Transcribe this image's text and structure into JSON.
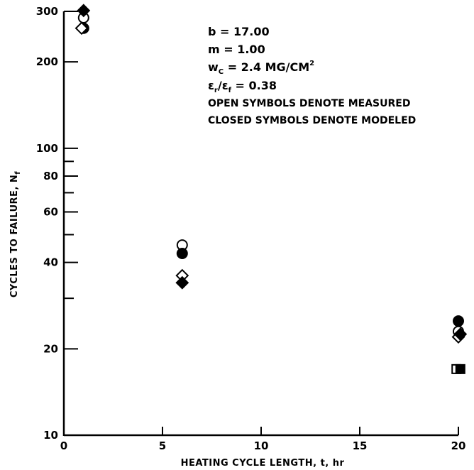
{
  "chart_data": {
    "type": "scatter",
    "xlabel": "HEATING CYCLE LENGTH, t, hr",
    "ylabel": "CYCLES TO FAILURE, N",
    "ylabel_sub": "f",
    "xlim": [
      0,
      20
    ],
    "ylim": [
      10,
      300
    ],
    "yscale": "log",
    "grid": false,
    "x_ticks": [
      0,
      5,
      10,
      15,
      20
    ],
    "x_tick_labels": [
      "0",
      "5",
      "10",
      "15",
      "20"
    ],
    "y_ticks_labeled": [
      10,
      20,
      40,
      60,
      80,
      100,
      200,
      300
    ],
    "y_tick_labels": [
      "10",
      "20",
      "40",
      "60",
      "80",
      "100",
      "200",
      "300"
    ],
    "y_ticks_minor": [
      30,
      50,
      70,
      90
    ],
    "annotations": {
      "b": "b = 17.00",
      "m": "m = 1.00",
      "wc_prefix": "w",
      "wc_sub": "C",
      "wc_value": " = 2.4 MG/CM",
      "wc_sup": "2",
      "eps_1": "ε",
      "eps_1_sub": "r",
      "eps_slash": "/ε",
      "eps_2_sub": "f",
      "eps_value": " = 0.38",
      "open_note": "OPEN SYMBOLS DENOTE MEASURED",
      "closed_note": "CLOSED SYMBOLS DENOTE MODELED"
    },
    "series": [
      {
        "marker": "circle",
        "filled": false,
        "points": [
          [
            1,
            285
          ],
          [
            6,
            46
          ],
          [
            20,
            23
          ]
        ]
      },
      {
        "marker": "circle",
        "filled": true,
        "points": [
          [
            1,
            262
          ],
          [
            6,
            43
          ],
          [
            20,
            25
          ]
        ]
      },
      {
        "marker": "diamond",
        "filled": false,
        "points": [
          [
            0.9,
            262
          ],
          [
            6,
            36
          ],
          [
            20,
            22
          ]
        ]
      },
      {
        "marker": "diamond",
        "filled": true,
        "points": [
          [
            1,
            302
          ],
          [
            6,
            34
          ],
          [
            20.1,
            22.5
          ]
        ]
      },
      {
        "marker": "square",
        "filled": false,
        "points": [
          [
            19.9,
            17
          ]
        ]
      },
      {
        "marker": "square",
        "filled": true,
        "points": [
          [
            20.1,
            17
          ]
        ]
      }
    ]
  }
}
